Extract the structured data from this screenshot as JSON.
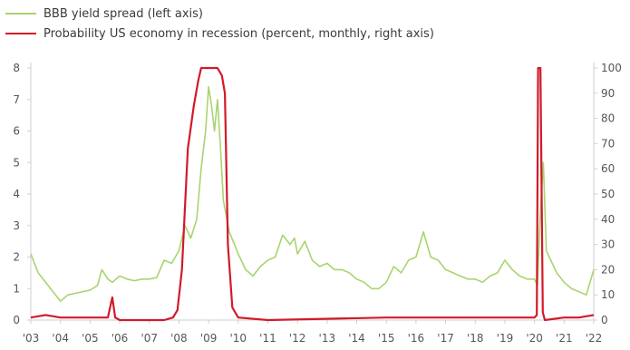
{
  "chart_data": {
    "type": "line",
    "title": "",
    "xlabel": "",
    "ylabel_left": "",
    "ylabel_right": "",
    "x_ticks": [
      "'03",
      "'04",
      "'05",
      "'06",
      "'07",
      "'08",
      "'09",
      "'10",
      "'11",
      "'12",
      "'13",
      "'14",
      "'15",
      "'16",
      "'17",
      "'18",
      "'19",
      "'20",
      "'21",
      "'22"
    ],
    "y_left_ticks": [
      "0",
      "1",
      "2",
      "3",
      "4",
      "5",
      "6",
      "7",
      "8"
    ],
    "y_right_ticks": [
      "0",
      "10",
      "20",
      "30",
      "40",
      "50",
      "60",
      "70",
      "80",
      "90",
      "100"
    ],
    "ylim_left": [
      0,
      8
    ],
    "ylim_right": [
      0,
      100
    ],
    "xlim": [
      2003,
      2022
    ],
    "grid": false,
    "legend_position": "top-left",
    "series": [
      {
        "name": "BBB yield spread (left axis)",
        "axis": "left",
        "color": "#a8d46f",
        "x": [
          2003.0,
          2003.25,
          2003.5,
          2003.75,
          2004.0,
          2004.25,
          2004.5,
          2004.75,
          2005.0,
          2005.25,
          2005.4,
          2005.6,
          2005.75,
          2006.0,
          2006.25,
          2006.5,
          2006.75,
          2007.0,
          2007.25,
          2007.5,
          2007.75,
          2008.0,
          2008.2,
          2008.4,
          2008.6,
          2008.75,
          2008.9,
          2009.0,
          2009.1,
          2009.2,
          2009.3,
          2009.4,
          2009.5,
          2009.7,
          2010.0,
          2010.25,
          2010.5,
          2010.75,
          2011.0,
          2011.25,
          2011.5,
          2011.75,
          2011.9,
          2012.0,
          2012.25,
          2012.5,
          2012.75,
          2013.0,
          2013.25,
          2013.5,
          2013.75,
          2014.0,
          2014.25,
          2014.5,
          2014.75,
          2015.0,
          2015.25,
          2015.5,
          2015.75,
          2016.0,
          2016.25,
          2016.5,
          2016.75,
          2017.0,
          2017.25,
          2017.5,
          2017.75,
          2018.0,
          2018.25,
          2018.5,
          2018.75,
          2019.0,
          2019.25,
          2019.5,
          2019.75,
          2020.0,
          2020.1,
          2020.2,
          2020.3,
          2020.4,
          2020.6,
          2020.75,
          2021.0,
          2021.25,
          2021.5,
          2021.75,
          2022.0
        ],
        "y": [
          2.1,
          1.5,
          1.2,
          0.9,
          0.6,
          0.8,
          0.85,
          0.9,
          0.95,
          1.1,
          1.6,
          1.3,
          1.2,
          1.4,
          1.3,
          1.25,
          1.3,
          1.3,
          1.35,
          1.9,
          1.8,
          2.2,
          3.0,
          2.6,
          3.2,
          4.8,
          6.0,
          7.4,
          6.8,
          6.0,
          7.0,
          5.5,
          3.8,
          2.8,
          2.1,
          1.6,
          1.4,
          1.7,
          1.9,
          2.0,
          2.7,
          2.4,
          2.6,
          2.1,
          2.5,
          1.9,
          1.7,
          1.8,
          1.6,
          1.6,
          1.5,
          1.3,
          1.2,
          1.0,
          1.0,
          1.2,
          1.7,
          1.5,
          1.9,
          2.0,
          2.8,
          2.0,
          1.9,
          1.6,
          1.5,
          1.4,
          1.3,
          1.3,
          1.2,
          1.4,
          1.5,
          1.9,
          1.6,
          1.4,
          1.3,
          1.3,
          1.1,
          3.5,
          5.0,
          2.2,
          1.8,
          1.5,
          1.2,
          1.0,
          0.9,
          0.8,
          1.6
        ]
      },
      {
        "name": "Probability US economy in recession (percent, monthly, right axis)",
        "axis": "right",
        "color": "#d11a2a",
        "x": [
          2003.0,
          2003.5,
          2004.0,
          2005.0,
          2005.6,
          2005.75,
          2005.85,
          2006.0,
          2007.0,
          2007.5,
          2007.8,
          2007.95,
          2008.1,
          2008.3,
          2008.5,
          2008.65,
          2008.75,
          2009.0,
          2009.3,
          2009.45,
          2009.55,
          2009.65,
          2009.8,
          2010.0,
          2011.0,
          2015.0,
          2016.0,
          2019.0,
          2020.0,
          2020.08,
          2020.12,
          2020.2,
          2020.28,
          2020.35,
          2021.0,
          2021.5,
          2022.0
        ],
        "y": [
          1,
          2,
          1,
          1,
          1,
          9,
          1,
          0,
          0,
          0,
          1,
          4,
          20,
          68,
          85,
          95,
          100,
          100,
          100,
          97,
          90,
          30,
          5,
          1,
          0,
          1,
          1,
          1,
          1,
          2,
          100,
          100,
          3,
          0,
          1,
          1,
          2
        ]
      }
    ]
  }
}
